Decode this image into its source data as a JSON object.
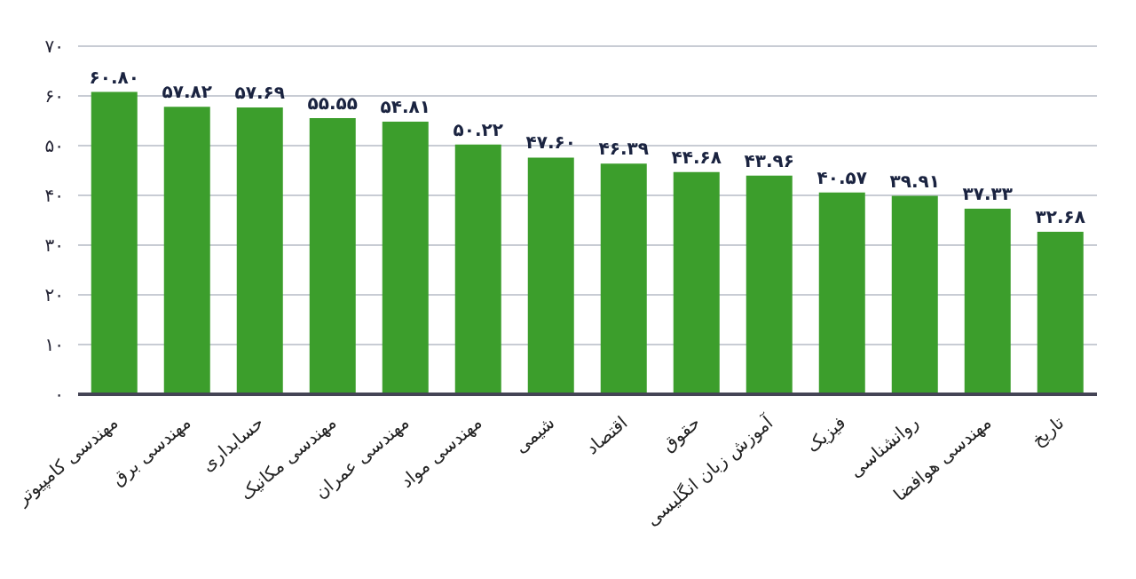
{
  "chart_data": {
    "type": "bar",
    "categories": [
      "مهندسی کامپیوتر",
      "مهندسی برق",
      "حسابداری",
      "مهندسی مکانیک",
      "مهندسی عمران",
      "مهندسی مواد",
      "شیمی",
      "اقتصاد",
      "حقوق",
      "آموزش زبان انگلیسی",
      "فیزیک",
      "روانشناسی",
      "مهندسی هوافضا",
      "تاریخ"
    ],
    "values": [
      60.8,
      57.82,
      57.69,
      55.55,
      54.81,
      50.22,
      47.6,
      46.39,
      44.68,
      43.96,
      40.57,
      39.91,
      37.33,
      32.68
    ],
    "value_labels": [
      "۶۰.۸۰",
      "۵۷.۸۲",
      "۵۷.۶۹",
      "۵۵.۵۵",
      "۵۴.۸۱",
      "۵۰.۲۲",
      "۴۷.۶۰",
      "۴۶.۳۹",
      "۴۴.۶۸",
      "۴۳.۹۶",
      "۴۰.۵۷",
      "۳۹.۹۱",
      "۳۷.۳۳",
      "۳۲.۶۸"
    ],
    "color": "#3c9e2c",
    "ylim": [
      0,
      70
    ],
    "yticks": [
      {
        "value": 0,
        "label": "۰"
      },
      {
        "value": 10,
        "label": "۱۰"
      },
      {
        "value": 20,
        "label": "۲۰"
      },
      {
        "value": 30,
        "label": "۳۰"
      },
      {
        "value": 40,
        "label": "۴۰"
      },
      {
        "value": 50,
        "label": "۵۰"
      },
      {
        "value": 60,
        "label": "۶۰"
      },
      {
        "value": 70,
        "label": "۷۰"
      }
    ],
    "grid": "y"
  }
}
